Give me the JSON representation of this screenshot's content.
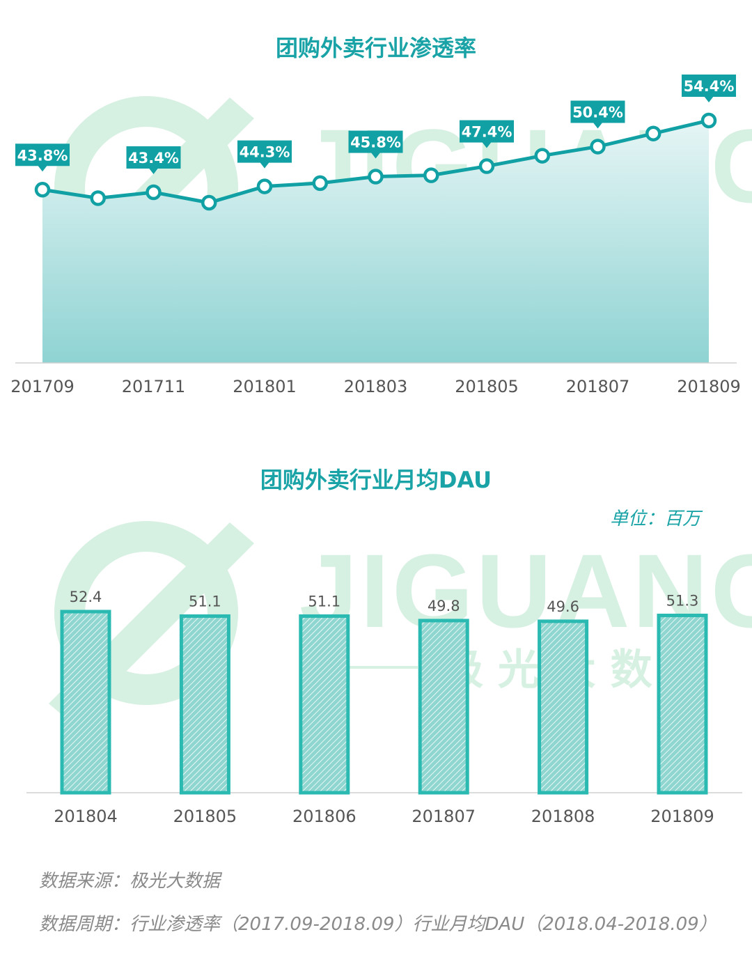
{
  "charts_text": {
    "title1": "团购外卖行业渗透率",
    "title2": "团购外卖行业月均DAU",
    "unit": "单位：百万"
  },
  "footer": {
    "source": "数据来源：极光大数据",
    "period": "数据周期：行业渗透率（2017.09-2018.09）行业月均DAU（2018.04-2018.09）"
  },
  "watermark": {
    "brand": "JIGUANG",
    "subtitle": "极 光 大 数 据"
  },
  "colors": {
    "accent": "#1aa3a6",
    "bar": "#2bbab1",
    "label_bg": "#11a0a3",
    "watermark": "#d6f0e2"
  },
  "chart_data": [
    {
      "type": "area",
      "title": "团购外卖行业渗透率",
      "x": [
        "201709",
        "201710",
        "201711",
        "201712",
        "201801",
        "201802",
        "201803",
        "201804",
        "201805",
        "201806",
        "201807",
        "201808",
        "201809"
      ],
      "tick_labels": [
        "201709",
        "201711",
        "201801",
        "201803",
        "201805",
        "201807",
        "201809"
      ],
      "values": [
        43.8,
        42.5,
        43.4,
        41.8,
        44.3,
        44.8,
        45.8,
        46.0,
        47.4,
        49.0,
        50.4,
        52.4,
        54.4
      ],
      "data_labels": [
        {
          "index": 0,
          "text": "43.8%"
        },
        {
          "index": 2,
          "text": "43.4%"
        },
        {
          "index": 4,
          "text": "44.3%"
        },
        {
          "index": 6,
          "text": "45.8%"
        },
        {
          "index": 8,
          "text": "47.4%"
        },
        {
          "index": 10,
          "text": "50.4%"
        },
        {
          "index": 12,
          "text": "54.4%"
        }
      ],
      "grid": false
    },
    {
      "type": "bar",
      "title": "团购外卖行业月均DAU",
      "unit": "单位：百万",
      "categories": [
        "201804",
        "201805",
        "201806",
        "201807",
        "201808",
        "201809"
      ],
      "values": [
        52.4,
        51.1,
        51.1,
        49.8,
        49.6,
        51.3
      ],
      "value_labels": [
        "52.4",
        "51.1",
        "51.1",
        "49.8",
        "49.6",
        "51.3"
      ],
      "grid": false
    }
  ]
}
